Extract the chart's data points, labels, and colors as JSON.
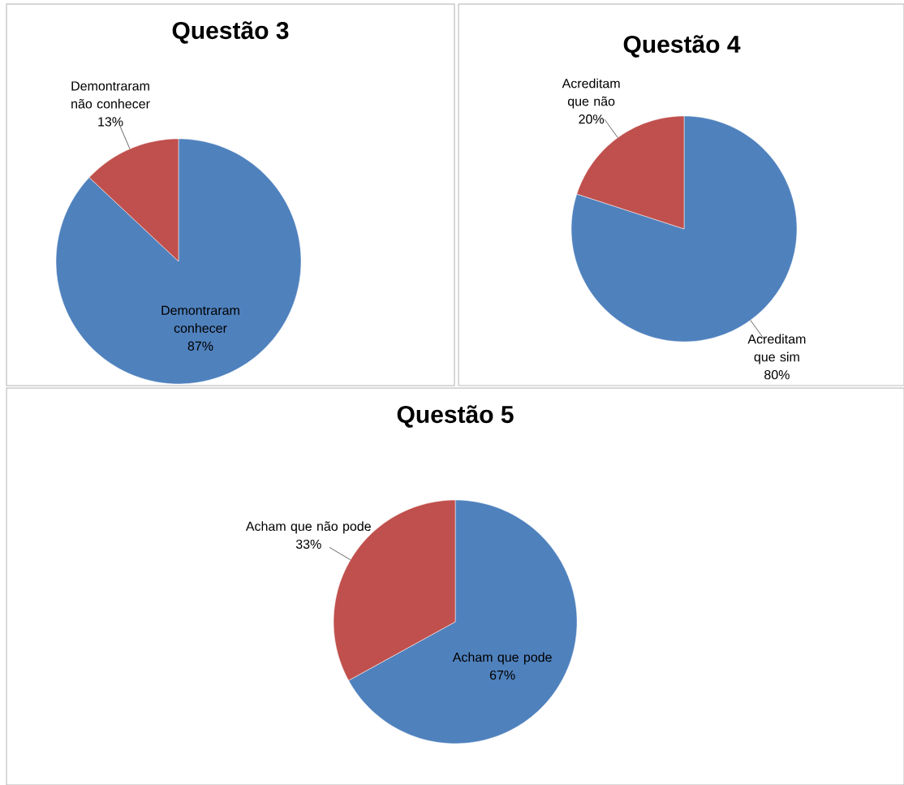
{
  "chart_data": [
    {
      "type": "pie",
      "title": "Questão 3",
      "categories": [
        "Demontraram conhecer",
        "Demontraram não conhecer"
      ],
      "values": [
        87,
        13
      ],
      "colors": [
        "#4f81bd",
        "#c0504d"
      ],
      "value_labels": [
        "87%",
        "13%"
      ]
    },
    {
      "type": "pie",
      "title": "Questão 4",
      "categories": [
        "Acreditam que sim",
        "Acreditam que não"
      ],
      "values": [
        80,
        20
      ],
      "colors": [
        "#4f81bd",
        "#c0504d"
      ],
      "value_labels": [
        "80%",
        "20%"
      ]
    },
    {
      "type": "pie",
      "title": "Questão 5",
      "categories": [
        "Acham que pode",
        "Acham que não pode"
      ],
      "values": [
        67,
        33
      ],
      "colors": [
        "#4f81bd",
        "#c0504d"
      ],
      "value_labels": [
        "67%",
        "33%"
      ]
    }
  ]
}
